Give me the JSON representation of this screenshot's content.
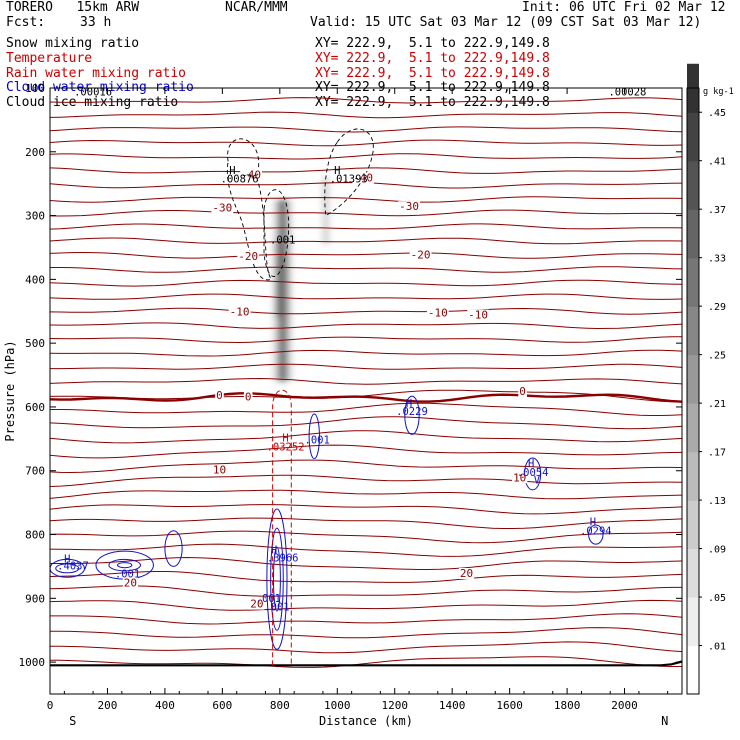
{
  "header": {
    "model": "TORERO   15km ARW",
    "org": "NCAR/MMM",
    "init": "Init: 06 UTC Fri 02 Mar 12",
    "fcst_label": "Fcst:",
    "fcst_value": "33 h",
    "valid": "Valid: 15 UTC Sat 03 Mar 12 (09 CST Sat 03 Mar 12)"
  },
  "legend": [
    {
      "name": "Snow mixing ratio",
      "xy": "XY= 222.9,  5.1 to 222.9,149.8",
      "color": "#000000"
    },
    {
      "name": "Temperature",
      "xy": "XY= 222.9,  5.1 to 222.9,149.8",
      "color": "#cc0000"
    },
    {
      "name": "Rain water mixing ratio",
      "xy": "XY= 222.9,  5.1 to 222.9,149.8",
      "color": "#cc0000"
    },
    {
      "name": "Cloud water mixing ratio",
      "xy": "XY= 222.9,  5.1 to 222.9,149.8",
      "color": "#0000cc"
    },
    {
      "name": "Cloud ice mixing ratio",
      "xy": "XY= 222.9,  5.1 to 222.9,149.8",
      "color": "#000000"
    }
  ],
  "chart_data": {
    "type": "cross-section",
    "xlabel": "Distance (km)",
    "ylabel": "Pressure (hPa)",
    "xlim": [
      0,
      2200
    ],
    "ylim": [
      100,
      1050
    ],
    "x_ticks": [
      "0",
      "200",
      "400",
      "600",
      "800",
      "1000",
      "1200",
      "1400",
      "1600",
      "1800",
      "2000"
    ],
    "x_tick_values": [
      0,
      200,
      400,
      600,
      800,
      1000,
      1200,
      1400,
      1600,
      1800,
      2000
    ],
    "y_ticks": [
      "100",
      "200",
      "300",
      "400",
      "500",
      "600",
      "700",
      "800",
      "900",
      "1000"
    ],
    "y_tick_values": [
      100,
      200,
      300,
      400,
      500,
      600,
      700,
      800,
      900,
      1000
    ],
    "endpoints": {
      "left": "S",
      "right": "N"
    },
    "colorbar": {
      "unit": "g kg-1",
      "labels": [
        ".01",
        ".05",
        ".09",
        ".13",
        ".17",
        ".21",
        ".25",
        ".29",
        ".33",
        ".37",
        ".41",
        ".45"
      ],
      "values": [
        0.01,
        0.05,
        0.09,
        0.13,
        0.17,
        0.21,
        0.25,
        0.29,
        0.33,
        0.37,
        0.41,
        0.45
      ]
    },
    "temperature_labels": [
      {
        "text": "-40",
        "x": 700,
        "p": 240
      },
      {
        "text": "-40",
        "x": 1090,
        "p": 245
      },
      {
        "text": "-30",
        "x": 600,
        "p": 292
      },
      {
        "text": "-30",
        "x": 1250,
        "p": 290
      },
      {
        "text": "-20",
        "x": 690,
        "p": 368
      },
      {
        "text": "-20",
        "x": 1290,
        "p": 366
      },
      {
        "text": "-10",
        "x": 660,
        "p": 455
      },
      {
        "text": "-10",
        "x": 1350,
        "p": 457
      },
      {
        "text": "-10",
        "x": 1490,
        "p": 460
      },
      {
        "text": "0",
        "x": 590,
        "p": 586
      },
      {
        "text": "0",
        "x": 690,
        "p": 588
      },
      {
        "text": "0",
        "x": 1645,
        "p": 580
      },
      {
        "text": "10",
        "x": 590,
        "p": 703
      },
      {
        "text": "10",
        "x": 1635,
        "p": 715
      },
      {
        "text": "20",
        "x": 280,
        "p": 880
      },
      {
        "text": "20",
        "x": 1450,
        "p": 865
      },
      {
        "text": "20",
        "x": 720,
        "p": 913
      }
    ],
    "extrema_labels": [
      {
        "text": "H",
        "x": 635,
        "p": 235,
        "kind": "snow"
      },
      {
        "text": ".00876",
        "x": 660,
        "p": 248,
        "kind": "snow"
      },
      {
        "text": "H",
        "x": 1000,
        "p": 235,
        "kind": "snow"
      },
      {
        "text": ".01393",
        "x": 1040,
        "p": 248,
        "kind": "snow"
      },
      {
        "text": ".001",
        "x": 810,
        "p": 344,
        "kind": "snow"
      },
      {
        "text": ".00016",
        "x": 150,
        "p": 112,
        "kind": "ice"
      },
      {
        "text": ".00028",
        "x": 2010,
        "p": 112,
        "kind": "ice"
      },
      {
        "text": "H",
        "x": 820,
        "p": 654,
        "kind": "rain"
      },
      {
        "text": ".03252",
        "x": 820,
        "p": 668,
        "kind": "rain"
      },
      {
        "text": ".001",
        "x": 930,
        "p": 657,
        "kind": "cloud"
      },
      {
        "text": "H",
        "x": 1250,
        "p": 600,
        "kind": "cloud"
      },
      {
        "text": ".0229",
        "x": 1260,
        "p": 613,
        "kind": "cloud"
      },
      {
        "text": "H",
        "x": 1675,
        "p": 694,
        "kind": "cloud"
      },
      {
        "text": ".0054",
        "x": 1680,
        "p": 708,
        "kind": "cloud"
      },
      {
        "text": "V",
        "x": 1695,
        "p": 720,
        "kind": "cloud"
      },
      {
        "text": "H",
        "x": 1890,
        "p": 786,
        "kind": "cloud"
      },
      {
        "text": ".0294",
        "x": 1900,
        "p": 800,
        "kind": "cloud"
      },
      {
        "text": "H",
        "x": 780,
        "p": 830,
        "kind": "cloud"
      },
      {
        "text": ".3966",
        "x": 810,
        "p": 842,
        "kind": "cloud"
      },
      {
        "text": "H",
        "x": 60,
        "p": 844,
        "kind": "cloud"
      },
      {
        "text": ".4037",
        "x": 80,
        "p": 855,
        "kind": "cloud"
      },
      {
        "text": ".001",
        "x": 270,
        "p": 867,
        "kind": "cloud"
      },
      {
        "text": ".001",
        "x": 760,
        "p": 906,
        "kind": "cloud"
      },
      {
        "text": ".001",
        "x": 790,
        "p": 919,
        "kind": "cloud"
      }
    ]
  }
}
